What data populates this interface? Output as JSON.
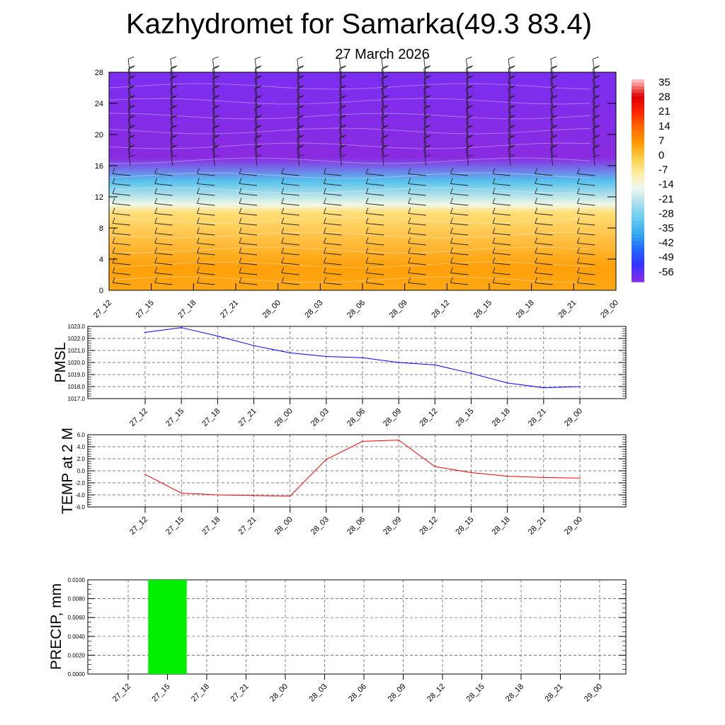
{
  "title": "Kazhydromet for Samarka(49.3 83.4)",
  "date": "27 March 2026",
  "time_labels": [
    "27_12",
    "27_15",
    "27_18",
    "27_21",
    "28_00",
    "28_03",
    "28_06",
    "28_09",
    "28_12",
    "28_15",
    "28_18",
    "28_21",
    "29_00"
  ],
  "chart_data": [
    {
      "type": "heatmap",
      "name": "vertical-temperature-wind",
      "y_ticks": [
        "0",
        "4",
        "8",
        "12",
        "16",
        "20",
        "24",
        "28"
      ],
      "ylim": [
        0,
        28
      ],
      "colorbar_labels": [
        "35",
        "28",
        "21",
        "14",
        "7",
        "0",
        "-7",
        "-14",
        "-21",
        "-28",
        "-35",
        "-42",
        "-49",
        "-56"
      ],
      "bands_by_level": [
        {
          "level": 0,
          "value": 5
        },
        {
          "level": 3,
          "value": 6
        },
        {
          "level": 10,
          "value": -4
        },
        {
          "level": 11,
          "value": -13
        },
        {
          "level": 14,
          "value": -30
        },
        {
          "level": 17,
          "value": -58
        },
        {
          "level": 21,
          "value": -57
        },
        {
          "level": 28,
          "value": -55
        }
      ]
    },
    {
      "type": "line",
      "name": "pmsl",
      "ylabel": "PMSL",
      "ylim": [
        1017.0,
        1023.0
      ],
      "y_ticks": [
        "1017.0",
        "1018.0",
        "1019.0",
        "1020.0",
        "1021.0",
        "1022.0",
        "1023.0"
      ],
      "values": [
        1022.5,
        1022.9,
        1022.2,
        1021.4,
        1020.8,
        1020.5,
        1020.4,
        1020.0,
        1019.8,
        1019.1,
        1018.3,
        1017.9,
        1018.0
      ],
      "color": "#0000ff"
    },
    {
      "type": "line",
      "name": "temp",
      "ylabel": "TEMP at 2 M",
      "ylim": [
        -6.0,
        6.0
      ],
      "y_ticks": [
        "-6.0",
        "-4.0",
        "-2.0",
        "0.0",
        "2.0",
        "4.0",
        "6.0"
      ],
      "values": [
        -0.6,
        -3.7,
        -4.0,
        -4.1,
        -4.2,
        1.9,
        4.9,
        5.1,
        0.7,
        -0.3,
        -0.9,
        -1.1,
        -1.2
      ],
      "color": "#ff0000"
    },
    {
      "type": "bar",
      "name": "precip",
      "ylabel": "PRECIP, mm",
      "ylim": [
        0,
        0.01
      ],
      "y_ticks": [
        "0.0000",
        "0.0020",
        "0.0040",
        "0.0060",
        "0.0080",
        "0.0100"
      ],
      "values": [
        0,
        0.01,
        0,
        0,
        0,
        0,
        0,
        0,
        0,
        0,
        0,
        0,
        0
      ],
      "color": "#00ee00"
    }
  ]
}
